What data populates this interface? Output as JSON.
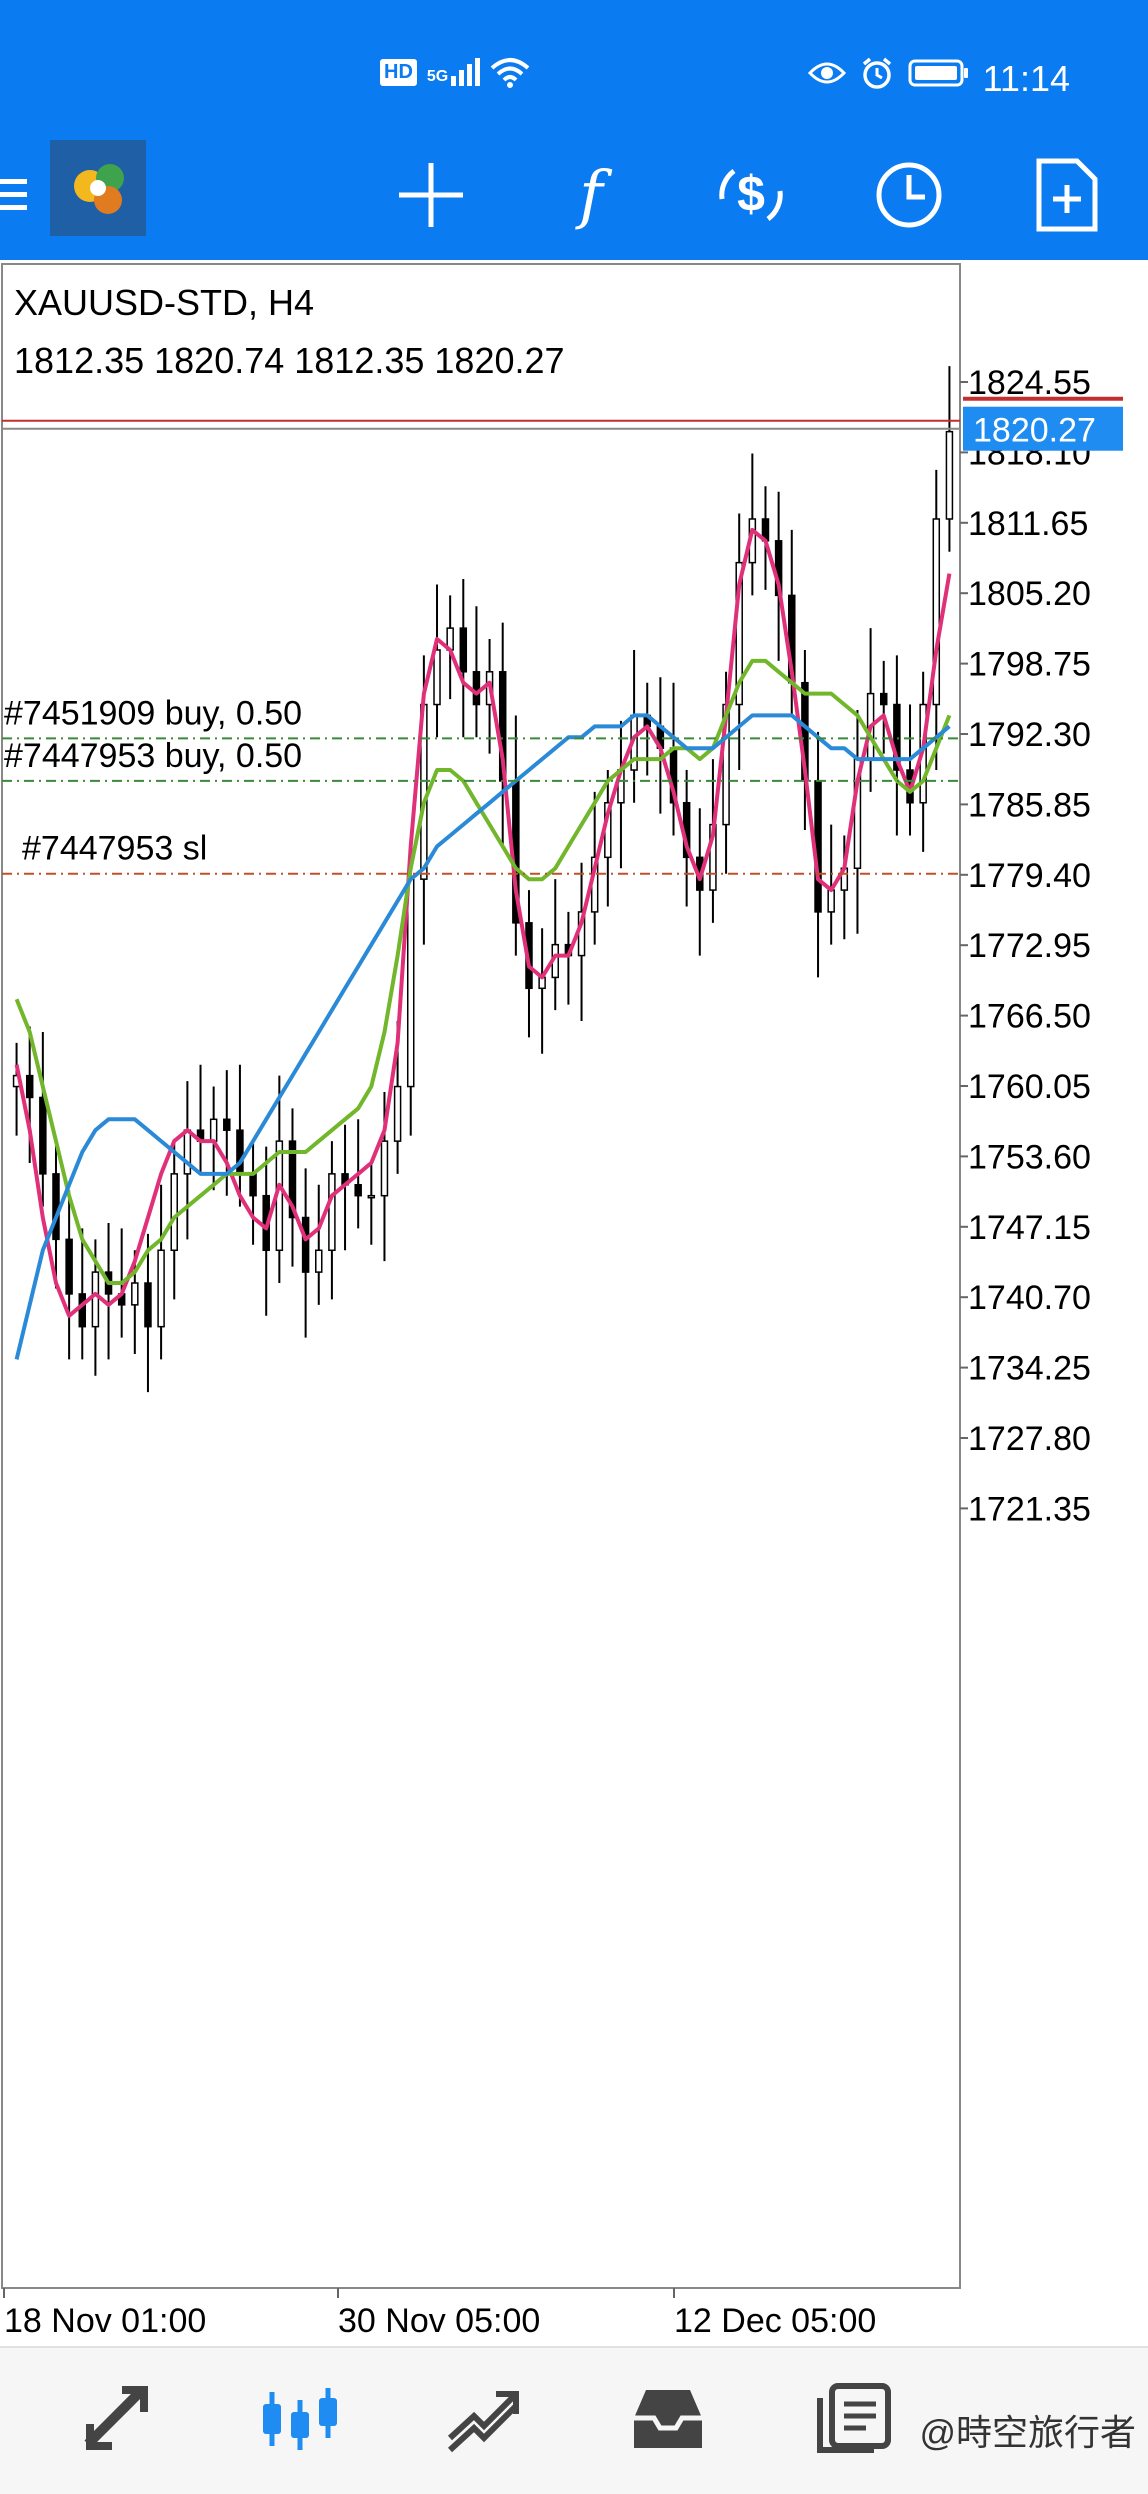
{
  "status_bar": {
    "time": "11:14",
    "left_icons": [
      "hd-icon",
      "5g-signal-icon",
      "wifi-icon"
    ],
    "right_icons": [
      "eye-icon",
      "alarm-icon",
      "battery-icon"
    ],
    "hd_label": "HD",
    "net_label": "5G"
  },
  "toolbar": {
    "icons": [
      "menu-icon",
      "app-logo-icon",
      "crosshair-icon",
      "indicator-f-icon",
      "trade-dollar-icon",
      "timeframe-clock-icon",
      "new-document-icon"
    ],
    "f_label": "f"
  },
  "chart_header": {
    "symbol": "XAUUSD-STD, H4",
    "ohlc": "1812.35 1820.74 1812.35 1820.27"
  },
  "chart_data": {
    "type": "candlestick",
    "price_axis": [
      "1824.55",
      "1818.10",
      "1811.65",
      "1805.20",
      "1798.75",
      "1792.30",
      "1785.85",
      "1779.40",
      "1772.95",
      "1766.50",
      "1760.05",
      "1753.60",
      "1747.15",
      "1740.70",
      "1734.25",
      "1727.80",
      "1721.35"
    ],
    "ylim": [
      1717.0,
      1826.0
    ],
    "time_axis": [
      "18 Nov 01:00",
      "30 Nov 05:00",
      "12 Dec 05:00"
    ],
    "current_price": "1820.27",
    "current_price_value": 1820.27,
    "ask_line_value": 1821.0,
    "order_lines": [
      {
        "label": "#7451909 buy, 0.50",
        "price": 1791.9,
        "color": "#3a8a3a"
      },
      {
        "label": "#7447953 buy, 0.50",
        "price": 1788.0,
        "color": "#3a8a3a"
      },
      {
        "label": "#7447953 sl",
        "price": 1779.5,
        "color": "#c0502a"
      }
    ],
    "candles_close": [
      1761,
      1759,
      1752,
      1746,
      1741,
      1738,
      1743,
      1741,
      1740,
      1742,
      1738,
      1745,
      1752,
      1756,
      1755,
      1757,
      1756,
      1752,
      1750,
      1745,
      1755,
      1748,
      1743,
      1745,
      1752,
      1751,
      1750,
      1750,
      1755,
      1760,
      1779,
      1795,
      1800,
      1802,
      1798,
      1795,
      1798,
      1788,
      1775,
      1769,
      1770,
      1773,
      1772,
      1776,
      1781,
      1786,
      1789,
      1794,
      1793,
      1791,
      1786,
      1781,
      1778,
      1784,
      1795,
      1808,
      1812,
      1810,
      1805,
      1797,
      1788,
      1776,
      1778,
      1780,
      1790,
      1796,
      1795,
      1789,
      1786,
      1795,
      1812,
      1820
    ],
    "series": [
      {
        "name": "",
        "color": "#e0307a",
        "values": [
          1762,
          1756,
          1748,
          1742,
          1739,
          1740,
          1741,
          1740,
          1741,
          1744,
          1748,
          1752,
          1755,
          1756,
          1755,
          1755,
          1753,
          1750,
          1748,
          1747,
          1751,
          1749,
          1746,
          1747,
          1750,
          1751,
          1752,
          1753,
          1756,
          1764,
          1782,
          1796,
          1801,
          1800,
          1797,
          1796,
          1797,
          1790,
          1778,
          1771,
          1770,
          1772,
          1772,
          1775,
          1780,
          1785,
          1789,
          1792,
          1793,
          1791,
          1787,
          1782,
          1779,
          1783,
          1794,
          1806,
          1811,
          1810,
          1806,
          1798,
          1789,
          1779,
          1778,
          1780,
          1788,
          1793,
          1794,
          1790,
          1787,
          1791,
          1800,
          1807
        ]
      },
      {
        "name": "",
        "color": "#72b62c",
        "values": [
          1768,
          1765,
          1760,
          1755,
          1750,
          1746,
          1744,
          1742,
          1742,
          1743,
          1745,
          1746,
          1748,
          1749,
          1750,
          1751,
          1752,
          1752,
          1752,
          1753,
          1754,
          1754,
          1754,
          1755,
          1756,
          1757,
          1758,
          1760,
          1765,
          1772,
          1780,
          1786,
          1789,
          1789,
          1788,
          1786,
          1784,
          1782,
          1780,
          1779,
          1779,
          1780,
          1782,
          1784,
          1786,
          1788,
          1789,
          1790,
          1790,
          1790,
          1791,
          1791,
          1790,
          1791,
          1794,
          1797,
          1799,
          1799,
          1798,
          1797,
          1796,
          1796,
          1796,
          1795,
          1794,
          1792,
          1790,
          1788,
          1787,
          1788,
          1791,
          1794
        ]
      },
      {
        "name": "",
        "color": "#2a8ad8",
        "values": [
          1735,
          1740,
          1745,
          1748,
          1751,
          1754,
          1756,
          1757,
          1757,
          1757,
          1756,
          1755,
          1754,
          1753,
          1752,
          1752,
          1752,
          1753,
          1755,
          1757,
          1759,
          1761,
          1763,
          1765,
          1767,
          1769,
          1771,
          1773,
          1775,
          1777,
          1779,
          1780,
          1782,
          1783,
          1784,
          1785,
          1786,
          1787,
          1788,
          1789,
          1790,
          1791,
          1792,
          1792,
          1793,
          1793,
          1793,
          1794,
          1794,
          1793,
          1792,
          1791,
          1791,
          1791,
          1792,
          1793,
          1794,
          1794,
          1794,
          1794,
          1793,
          1792,
          1791,
          1791,
          1790,
          1790,
          1790,
          1790,
          1790,
          1791,
          1792,
          1793
        ]
      }
    ]
  },
  "bottom_nav": {
    "icons": [
      "quotes-icon",
      "chart-icon",
      "trade-icon",
      "history-inbox-icon",
      "messages-icon"
    ],
    "watermark": "@時空旅行者"
  },
  "colors": {
    "accent": "#0a7bf0",
    "price_tag": "#1e8cf0"
  }
}
